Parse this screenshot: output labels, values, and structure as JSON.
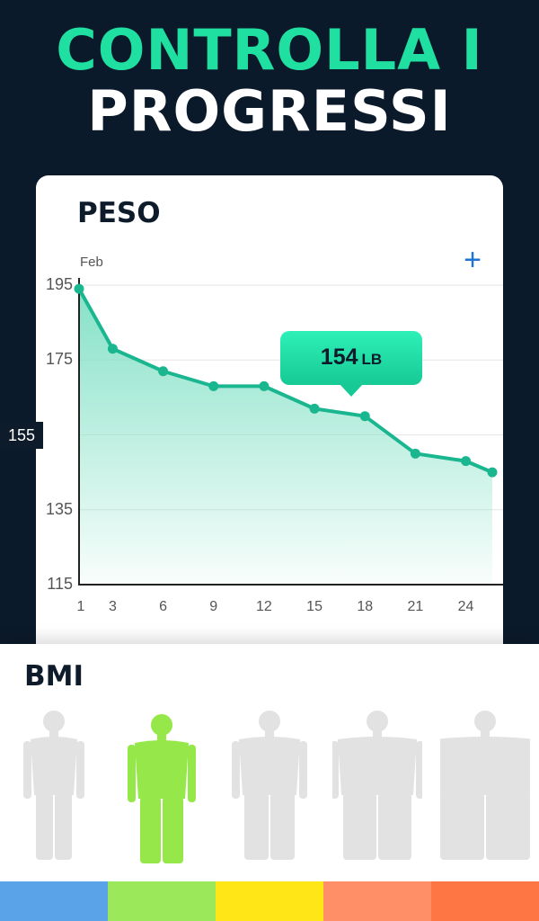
{
  "headline": {
    "line1": "CONTROLLA I",
    "line2": "PROGRESSI"
  },
  "weight_card": {
    "title": "PESO",
    "month": "Feb",
    "add_icon": "plus-icon",
    "tooltip": {
      "value": "154",
      "unit": "LB"
    }
  },
  "chart_data": {
    "type": "area",
    "x": [
      1,
      3,
      6,
      9,
      12,
      15,
      18,
      21,
      24,
      26
    ],
    "y": [
      194,
      178,
      172,
      168,
      168,
      162,
      160,
      150,
      148,
      145
    ],
    "xticks": [
      "1",
      "3",
      "6",
      "9",
      "12",
      "15",
      "18",
      "21",
      "24"
    ],
    "yticks": [
      "195",
      "175",
      "155",
      "135",
      "115"
    ],
    "highlighted_ytick": "155",
    "ylim": [
      115,
      195
    ],
    "grid": true,
    "line_color": "#1ab690",
    "fill_color": "#7fe0c4"
  },
  "bmi": {
    "title": "BMI",
    "figures": [
      "underweight-figure",
      "normal-figure",
      "overweight-figure",
      "obese-figure",
      "extremely-obese-figure"
    ],
    "active_index": 1,
    "colors": [
      "#5aa3e8",
      "#9be85a",
      "#ffe617",
      "#ff8f66",
      "#ff7645"
    ],
    "figure_color": "#e2e2e2",
    "active_color": "#96e84a"
  }
}
